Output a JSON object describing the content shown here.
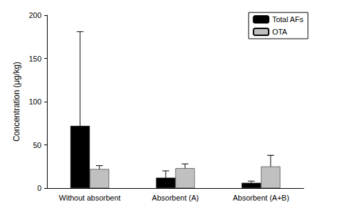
{
  "chart_data": {
    "type": "bar",
    "y_label": "Concentration (μg/kg)",
    "categories": [
      "Without absorbent",
      "Absorbent (A)",
      "Absorbent (A+B)"
    ],
    "series": [
      {
        "name": "Total AFs",
        "color": "#000000",
        "values": [
          72,
          12,
          6
        ],
        "errors": [
          109,
          8,
          2
        ]
      },
      {
        "name": "OTA",
        "color": "#c0c0c0",
        "values": [
          22,
          23,
          25
        ],
        "errors": [
          4,
          5,
          13
        ]
      }
    ],
    "ylim": [
      0,
      200
    ],
    "yticks": [
      0,
      50,
      100,
      150,
      200
    ],
    "grid": false,
    "legend": "upper right"
  }
}
